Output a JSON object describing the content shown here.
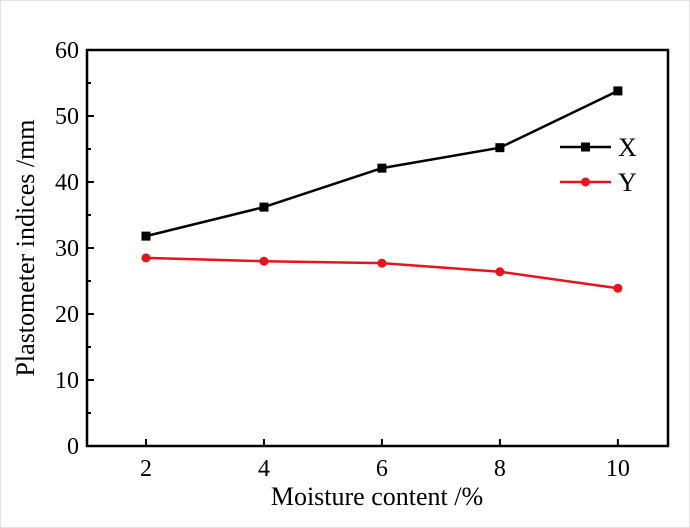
{
  "chart_data": {
    "type": "line",
    "title": "",
    "xlabel": "Moisture content /%",
    "ylabel": "Plastometer indices /mm",
    "xlim": [
      1,
      10.85
    ],
    "ylim": [
      0,
      60
    ],
    "xticks": [
      2,
      4,
      6,
      8,
      10
    ],
    "yticks": [
      0,
      10,
      20,
      30,
      40,
      50,
      60
    ],
    "x": [
      2,
      4,
      6,
      8,
      10
    ],
    "series": [
      {
        "name": "X",
        "values": [
          31.8,
          36.2,
          42.1,
          45.2,
          53.8
        ],
        "color": "#000000",
        "marker": "square"
      },
      {
        "name": "Y",
        "values": [
          28.5,
          28.0,
          27.7,
          26.4,
          23.9
        ],
        "color": "#e8141b",
        "marker": "circle"
      }
    ],
    "grid": false,
    "legend_position": "top-right"
  }
}
